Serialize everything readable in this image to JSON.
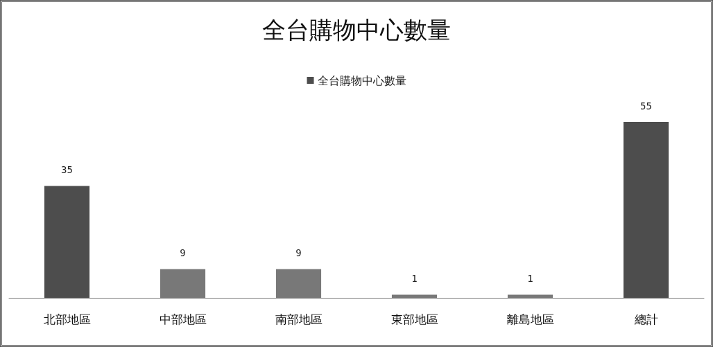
{
  "chart_data": {
    "type": "bar",
    "title": "全台購物中心數量",
    "categories": [
      "北部地區",
      "中部地區",
      "南部地區",
      "東部地區",
      "離島地區",
      "總計"
    ],
    "series": [
      {
        "name": "全台購物中心數量",
        "color": "#4d4d4d",
        "colors": [
          "#4d4d4d",
          "#787878",
          "#787878",
          "#787878",
          "#787878",
          "#4d4d4d"
        ],
        "values": [
          35,
          9,
          9,
          1,
          1,
          55
        ]
      }
    ],
    "data_labels": true,
    "legend": "top"
  }
}
